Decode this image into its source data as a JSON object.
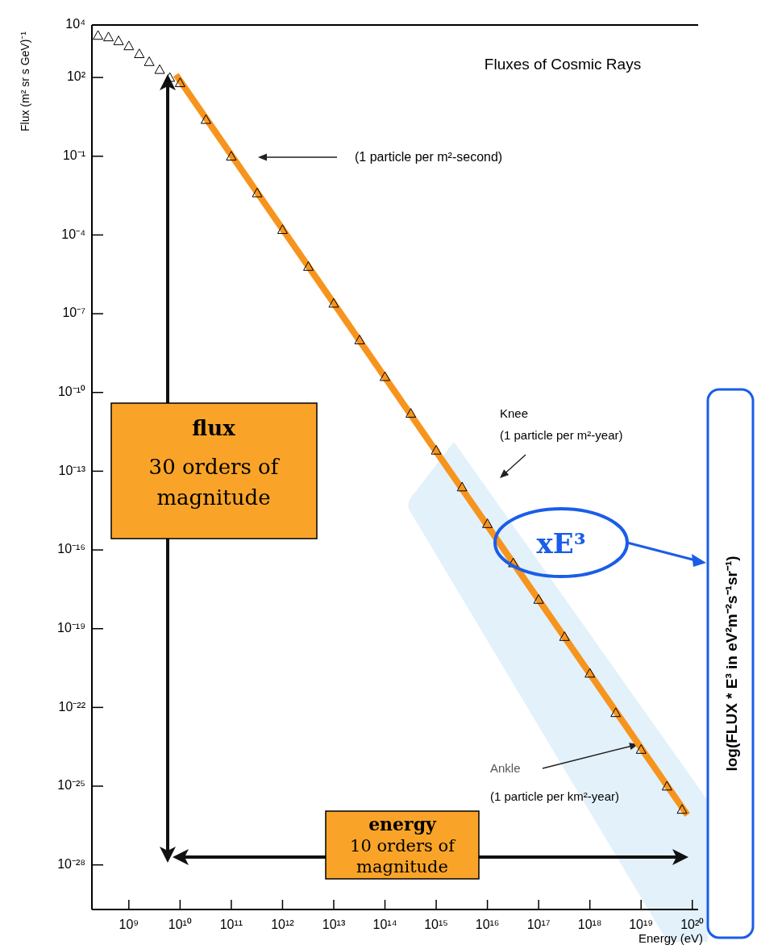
{
  "chart_data": {
    "type": "scatter",
    "title": "Fluxes of Cosmic Rays",
    "xlabel": "Energy (eV)",
    "ylabel": "Flux (m² sr s GeV)⁻¹",
    "log": "xy",
    "grid": false,
    "xlim": [
      190000000.0,
      1.3e+20
    ],
    "ylim": [
      2e-30,
      10000.0
    ],
    "xticks": [
      {
        "value": 1000000000.0,
        "label": "10⁹"
      },
      {
        "value": 10000000000.0,
        "label": "10¹⁰"
      },
      {
        "value": 100000000000.0,
        "label": "10¹¹"
      },
      {
        "value": 1000000000000.0,
        "label": "10¹²"
      },
      {
        "value": 10000000000000.0,
        "label": "10¹³"
      },
      {
        "value": 100000000000000.0,
        "label": "10¹⁴"
      },
      {
        "value": 1000000000000000.0,
        "label": "10¹⁵"
      },
      {
        "value": 1e+16,
        "label": "10¹⁶"
      },
      {
        "value": 1e+17,
        "label": "10¹⁷"
      },
      {
        "value": 1e+18,
        "label": "10¹⁸"
      },
      {
        "value": 1e+19,
        "label": "10¹⁹"
      },
      {
        "value": 1e+20,
        "label": "10²⁰"
      }
    ],
    "yticks": [
      {
        "value": 10000.0,
        "label": "10⁴"
      },
      {
        "value": 100.0,
        "label": "10²"
      },
      {
        "value": 0.1,
        "label": "10⁻¹"
      },
      {
        "value": 0.0001,
        "label": "10⁻⁴"
      },
      {
        "value": 1e-07,
        "label": "10⁻⁷"
      },
      {
        "value": 1e-10,
        "label": "10⁻¹⁰"
      },
      {
        "value": 1e-13,
        "label": "10⁻¹³"
      },
      {
        "value": 1e-16,
        "label": "10⁻¹⁶"
      },
      {
        "value": 1e-19,
        "label": "10⁻¹⁹"
      },
      {
        "value": 1e-22,
        "label": "10⁻²²"
      },
      {
        "value": 1e-25,
        "label": "10⁻²⁵"
      },
      {
        "value": 1e-28,
        "label": "10⁻²⁸"
      }
    ],
    "series": [
      {
        "color": "#000000",
        "marker": "triangle",
        "x": [
          250000000.0,
          400000000.0,
          630000000.0,
          1000000000.0,
          1600000000.0,
          2500000000.0,
          4000000000.0,
          6300000000.0,
          10000000000.0,
          32000000000.0,
          100000000000.0,
          320000000000.0,
          1000000000000.0,
          3200000000000.0,
          10000000000000.0,
          32000000000000.0,
          100000000000000.0,
          320000000000000.0,
          1000000000000000.0,
          3200000000000000.0,
          1e+16,
          3.2e+16,
          1e+17,
          3.2e+17,
          1e+18,
          3.2e+18,
          1e+19,
          3.2e+19,
          6.3e+19
        ],
        "values": [
          4000,
          3500,
          2500,
          1600,
          800,
          400,
          200,
          100,
          63,
          2.5,
          0.1,
          0.004,
          0.00016,
          6.3e-06,
          2.5e-07,
          1e-08,
          4e-10,
          1.6e-11,
          6.3e-13,
          2.5e-14,
          1e-15,
          3.2e-17,
          1.3e-18,
          5e-20,
          2e-21,
          6.3e-23,
          2.5e-24,
          1e-25,
          1.3e-26
        ]
      },
      {
        "type": "line",
        "color": "#f7941d",
        "x": [
          8300000000.0,
          8e+19
        ],
        "values": [
          126,
          8e-27
        ]
      }
    ],
    "annotations": [
      "(1 particle per m²-second)",
      "Knee",
      "(1 particle per m²-year)",
      "Ankle",
      "(1 particle per km²-year)",
      "flux",
      "30 orders of magnitude",
      "energy",
      "10 orders of magnitude",
      "xE³",
      "log(FLUX * E³ in eV²m⁻²s⁻¹sr⁻¹)"
    ]
  }
}
